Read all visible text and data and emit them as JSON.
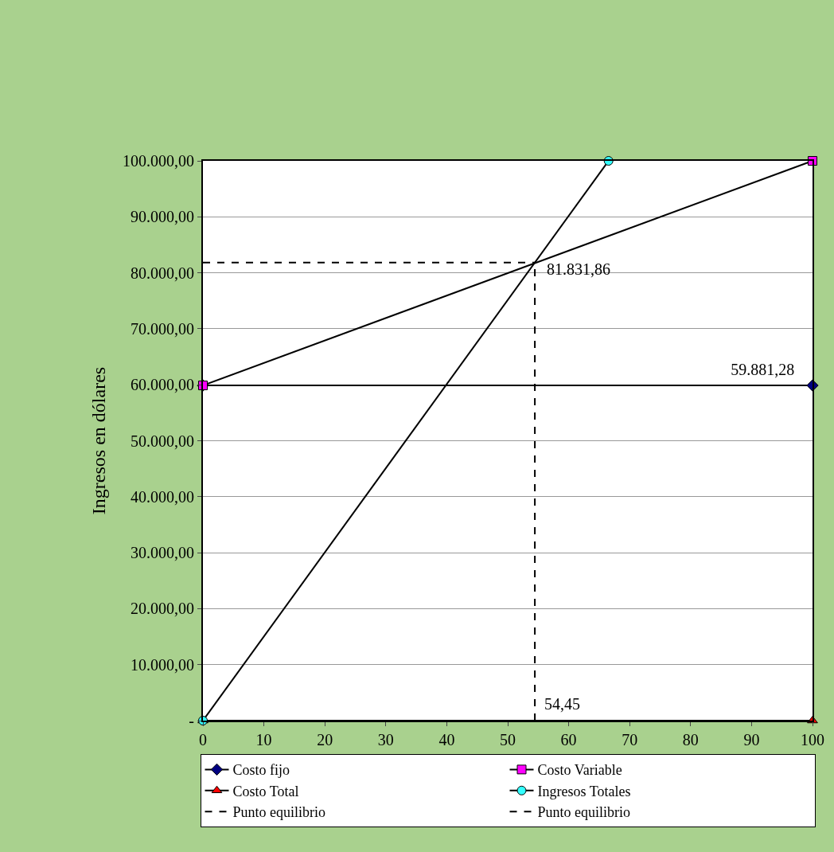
{
  "chart_data": {
    "type": "line",
    "ylabel": "Ingresos en dólares",
    "xlim": [
      0,
      100
    ],
    "xticks": [
      0,
      10,
      20,
      30,
      40,
      50,
      60,
      70,
      80,
      90,
      100
    ],
    "ylim": [
      0,
      100000
    ],
    "yticks": [
      {
        "value": 0,
        "label": "-"
      },
      {
        "value": 10000,
        "label": "10.000,00"
      },
      {
        "value": 20000,
        "label": "20.000,00"
      },
      {
        "value": 30000,
        "label": "30.000,00"
      },
      {
        "value": 40000,
        "label": "40.000,00"
      },
      {
        "value": 50000,
        "label": "50.000,00"
      },
      {
        "value": 60000,
        "label": "60.000,00"
      },
      {
        "value": 70000,
        "label": "70.000,00"
      },
      {
        "value": 80000,
        "label": "80.000,00"
      },
      {
        "value": 90000,
        "label": "90.000,00"
      },
      {
        "value": 100000,
        "label": "100.000,00"
      }
    ],
    "grid": "y",
    "legend": "bottom",
    "series": [
      {
        "name": "Costo fijo",
        "color": "#000000",
        "marker": "diamond",
        "x": [
          0,
          100
        ],
        "values": [
          59881.28,
          59881.28
        ],
        "colors": [
          "#000080",
          "#000080"
        ],
        "value_labels": [
          null,
          "59.881,28"
        ]
      },
      {
        "name": "Costo Variable",
        "color": "#000000",
        "marker": "square",
        "x": [
          0,
          100
        ],
        "values": [
          59881.28,
          100000
        ],
        "colors": [
          "#ff00ff",
          "#ff00ff"
        ]
      },
      {
        "name": "Costo Total",
        "color": "#000000",
        "marker": "triangle",
        "x": [
          0,
          100
        ],
        "values": [
          0,
          0
        ],
        "colors": [
          "#ff0000",
          "#ff0000"
        ]
      },
      {
        "name": "Ingresos Totales",
        "color": "#000000",
        "marker": "circle",
        "x": [
          0,
          66.54
        ],
        "values": [
          0,
          100000
        ],
        "colors": [
          "#33ffff",
          "#33ffff"
        ]
      },
      {
        "name": "Punto equilibrio",
        "color": "#000000",
        "marker": "none",
        "line_style": "dashed",
        "x": [
          0,
          54.45
        ],
        "values": [
          81831.86,
          81831.86
        ],
        "value_labels": [
          null,
          "81.831,86"
        ]
      },
      {
        "name": "Punto equilibrio",
        "color": "#000000",
        "marker": "none",
        "line_style": "dashed",
        "x": [
          54.45,
          54.45
        ],
        "values": [
          0,
          81831.86
        ]
      }
    ],
    "annotations": [
      {
        "text": "54,45",
        "x": 54.45,
        "y": 0
      }
    ]
  }
}
